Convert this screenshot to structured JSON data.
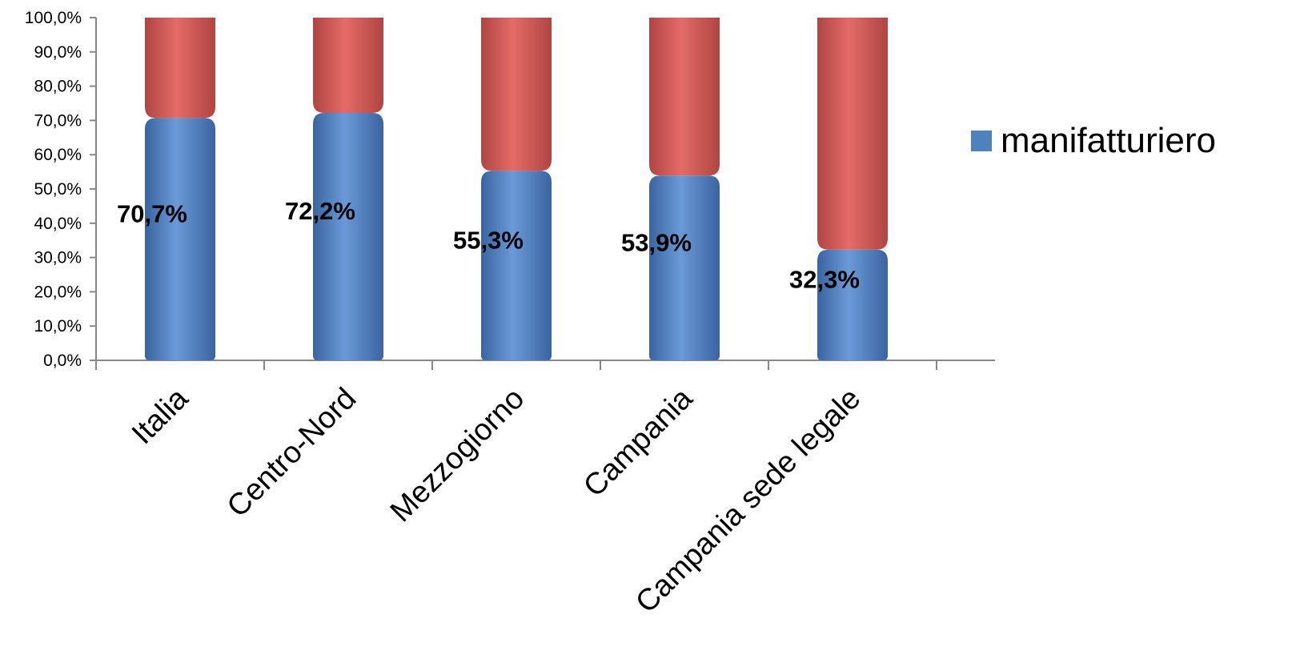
{
  "chart_data": {
    "type": "bar",
    "stacked": true,
    "categories": [
      "Italia",
      "Centro-Nord",
      "Mezzogiorno",
      "Campania",
      "Campania sede legale"
    ],
    "series": [
      {
        "name": "manifatturiero",
        "values": [
          70.7,
          72.2,
          55.3,
          53.9,
          32.3
        ],
        "data_labels": [
          "70,7%",
          "72,2%",
          "55,3%",
          "53,9%",
          "32,3%"
        ],
        "color": "#4f81bd"
      },
      {
        "values": [
          29.3,
          27.8,
          44.7,
          46.1,
          67.7
        ],
        "color": "#c0504d"
      }
    ],
    "yticks": [
      "0,0%",
      "10,0%",
      "20,0%",
      "30,0%",
      "40,0%",
      "50,0%",
      "60,0%",
      "70,0%",
      "80,0%",
      "90,0%",
      "100,0%"
    ],
    "ylim": [
      0,
      100
    ],
    "grid": false,
    "legend_position": "right"
  }
}
